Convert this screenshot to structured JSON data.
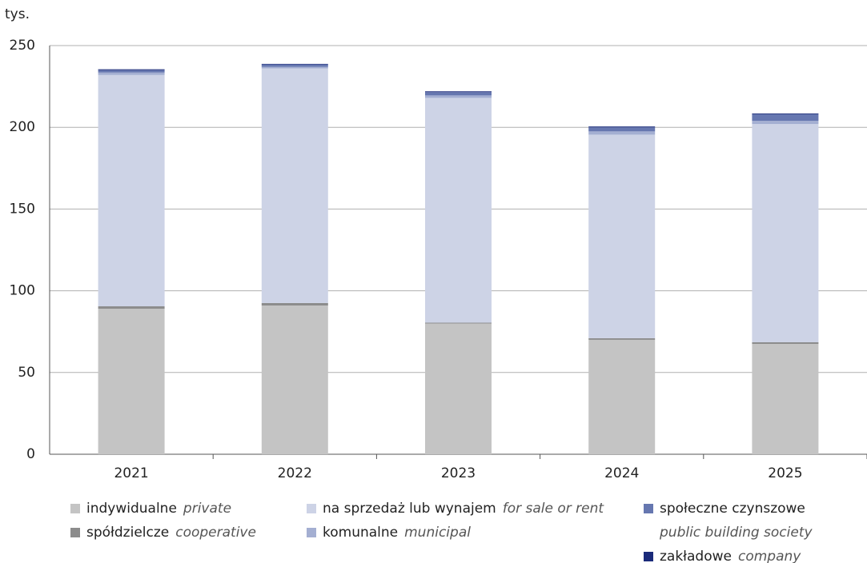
{
  "chart_data": {
    "type": "stacked_bar",
    "y_unit": "tys.",
    "categories": [
      "2021",
      "2022",
      "2023",
      "2024",
      "2025"
    ],
    "ylim": [
      0,
      250
    ],
    "yticks": [
      0,
      50,
      100,
      150,
      200,
      250
    ],
    "grid": true,
    "series": [
      {
        "name": "indywidualne",
        "label_en": "private",
        "color": "#c4c4c4",
        "values": [
          89,
          91,
          80,
          70,
          67.5
        ]
      },
      {
        "name": "spółdzielcze",
        "label_en": "cooperative",
        "color": "#8c8c8c",
        "values": [
          1.5,
          1.5,
          0.5,
          1,
          1
        ]
      },
      {
        "name": "na sprzedaż lub wynajem",
        "label_en": "for sale or rent",
        "color": "#cdd3e6",
        "values": [
          141.5,
          143.5,
          137.5,
          124.5,
          133.5
        ]
      },
      {
        "name": "komunalne",
        "label_en": "municipal",
        "color": "#a4afd2",
        "values": [
          1.5,
          1,
          1.5,
          2,
          2
        ]
      },
      {
        "name": "społeczne czynszowe",
        "label_en": "public building society",
        "color": "#6677b0",
        "values": [
          1.5,
          1.5,
          2,
          2.5,
          4
        ]
      },
      {
        "name": "zakładowe",
        "label_en": "company",
        "color": "#1a2a7a",
        "values": [
          0.5,
          0.3,
          0.5,
          0.5,
          0.5
        ]
      }
    ]
  }
}
